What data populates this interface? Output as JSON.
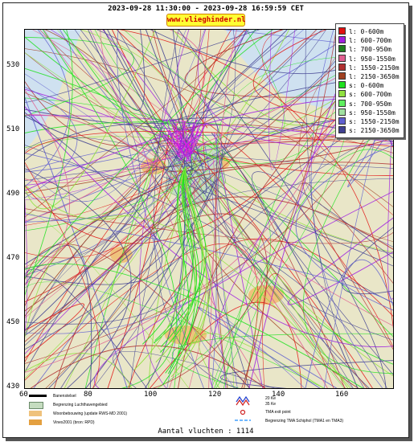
{
  "header": {
    "title": "2023-09-28 11:30:00 - 2023-09-28 16:59:59 CET",
    "site": "www.vlieghinder.nl"
  },
  "axes": {
    "y_ticks": [
      "530",
      "510",
      "490",
      "470",
      "450",
      "430"
    ],
    "x_ticks": [
      "60",
      "80",
      "100",
      "120",
      "140",
      "160"
    ]
  },
  "legend": [
    {
      "label": "l: 0-600m",
      "color": "#e01010"
    },
    {
      "label": "l: 600-700m",
      "color": "#a020e0"
    },
    {
      "label": "l: 700-950m",
      "color": "#208020"
    },
    {
      "label": "l: 950-1550m",
      "color": "#e06090"
    },
    {
      "label": "l: 1550-2150m",
      "color": "#b03030"
    },
    {
      "label": "l: 2150-3650m",
      "color": "#a04020"
    },
    {
      "label": "s: 0-600m",
      "color": "#20e020"
    },
    {
      "label": "s: 600-700m",
      "color": "#90e040"
    },
    {
      "label": "s: 700-950m",
      "color": "#60f060"
    },
    {
      "label": "s: 950-1550m",
      "color": "#a0e0a0"
    },
    {
      "label": "s: 1550-2150m",
      "color": "#6060d0"
    },
    {
      "label": "s: 2150-3650m",
      "color": "#404090"
    }
  ],
  "bottom_legend": {
    "runways": "Banenstelsel",
    "airport_boundary": "Begrenzing Luchthavengebied",
    "housing": "Woonbebouwing (update RWS-MD 2001)",
    "vinex": "Vinex2001 (bron: RPD)",
    "km20": "20 Ke",
    "km35": "35 Ke",
    "tma_exit": "TMA exit point",
    "tma_boundary": "Begrenzing TMA Schiphol  (TMA1 en TMA3)"
  },
  "footer": {
    "flight_count": "Aantal vluchten : 1114"
  },
  "colors": {
    "sea": "#cfe1f0",
    "land": "#e9e6c8",
    "urban": "#efc27c",
    "boundary_fill": "#c5dcc0"
  }
}
